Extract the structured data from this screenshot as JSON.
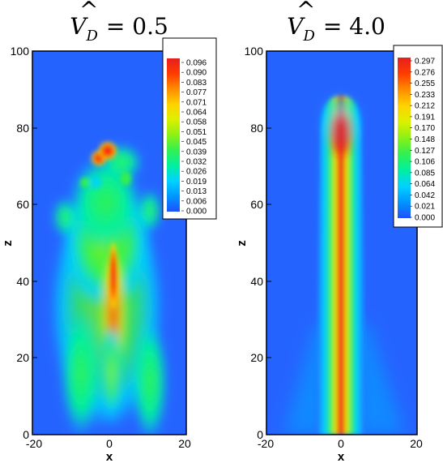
{
  "chart_data": [
    {
      "type": "heatmap",
      "title": "V̂_D = 0.5",
      "title_parts": {
        "symbol": "V",
        "hat": "^",
        "sub": "D",
        "rhs": "= 0.5"
      },
      "xlabel": "x",
      "ylabel": "z",
      "xlim": [
        -20,
        20
      ],
      "ylim": [
        0,
        100
      ],
      "x_visible_max": 10,
      "xticks": [
        "-20",
        "0",
        "20"
      ],
      "yticks": [
        "0",
        "20",
        "40",
        "60",
        "80",
        "100"
      ],
      "colorbar_levels": [
        "0.096",
        "0.090",
        "0.083",
        "0.077",
        "0.071",
        "0.064",
        "0.058",
        "0.051",
        "0.045",
        "0.039",
        "0.032",
        "0.026",
        "0.019",
        "0.013",
        "0.006",
        "0.000"
      ],
      "value_range": [
        0,
        0.096
      ],
      "field": {
        "description_type": "turbulent-plume",
        "centerline_peak_z": 35,
        "plume_top_z": 88
      }
    },
    {
      "type": "heatmap",
      "title": "V̂_D = 4.0",
      "title_parts": {
        "symbol": "V",
        "hat": "^",
        "sub": "D",
        "rhs": "= 4.0"
      },
      "xlabel": "x",
      "ylabel": "z",
      "xlim": [
        -20,
        20
      ],
      "ylim": [
        0,
        100
      ],
      "x_visible_max": 10,
      "xticks": [
        "-20",
        "0",
        "20"
      ],
      "yticks": [
        "0",
        "20",
        "40",
        "60",
        "80",
        "100"
      ],
      "colorbar_levels": [
        "0.297",
        "0.276",
        "0.255",
        "0.233",
        "0.212",
        "0.191",
        "0.170",
        "0.148",
        "0.127",
        "0.106",
        "0.085",
        "0.064",
        "0.042",
        "0.021",
        "0.000"
      ],
      "value_range": [
        0,
        0.297
      ],
      "field": {
        "description_type": "columnar-jet",
        "column_top_z": 88
      }
    }
  ],
  "colors": {
    "background_field": "#2563ff",
    "colormap": [
      "#1e50ff",
      "#0096ff",
      "#00d2ff",
      "#00f0a0",
      "#32f050",
      "#8cf014",
      "#dcf000",
      "#ffd200",
      "#ff8c00",
      "#ff3c00",
      "#e61e1e"
    ]
  }
}
